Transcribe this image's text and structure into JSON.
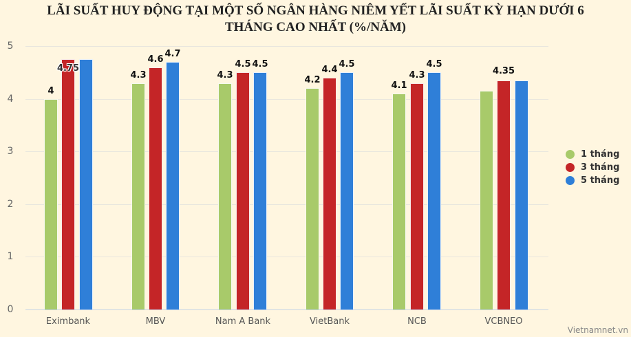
{
  "title_line1": "LÃI SUẤT HUY ĐỘNG TẠI MỘT SỐ NGÂN HÀNG NIÊM YẾT LÃI SUẤT KỲ HẠN DƯỚI 6",
  "title_line2": "THÁNG CAO NHẤT (%/NĂM)",
  "credit": "Vietnamnet.vn",
  "colors": {
    "1 tháng": "#a8ca6a",
    "3 tháng": "#c42527",
    "5 tháng": "#2f7fd8",
    "background": "#fff6e0"
  },
  "y_ticks": [
    "0",
    "1",
    "2",
    "3",
    "4",
    "5"
  ],
  "legend": [
    {
      "label": "1 tháng",
      "color": "#a8ca6a"
    },
    {
      "label": "3 tháng",
      "color": "#c42527"
    },
    {
      "label": "5 tháng",
      "color": "#2f7fd8"
    }
  ],
  "chart_data": {
    "type": "bar",
    "title": "LÃI SUẤT HUY ĐỘNG TẠI MỘT SỐ NGÂN HÀNG NIÊM YẾT LÃI SUẤT KỲ HẠN DƯỚI 6 THÁNG CAO NHẤT (%/NĂM)",
    "categories": [
      "Eximbank",
      "MBV",
      "Nam A Bank",
      "VietBank",
      "NCB",
      "VCBNEO"
    ],
    "series": [
      {
        "name": "1 tháng",
        "values": [
          4,
          4.3,
          4.3,
          4.2,
          4.1,
          4.15
        ]
      },
      {
        "name": "3 tháng",
        "values": [
          4.75,
          4.6,
          4.5,
          4.4,
          4.3,
          4.35
        ]
      },
      {
        "name": "5 tháng",
        "values": [
          4.75,
          4.7,
          4.5,
          4.5,
          4.5,
          4.35
        ]
      }
    ],
    "data_labels": [
      {
        "category": "Eximbank",
        "series": "1 tháng",
        "text": "4"
      },
      {
        "category": "Eximbank",
        "series": "3 tháng",
        "text": "4.75"
      },
      {
        "category": "MBV",
        "series": "1 tháng",
        "text": "4.3"
      },
      {
        "category": "MBV",
        "series": "3 tháng",
        "text": "4.6"
      },
      {
        "category": "MBV",
        "series": "5 tháng",
        "text": "4.7"
      },
      {
        "category": "Nam A Bank",
        "series": "1 tháng",
        "text": "4.3"
      },
      {
        "category": "Nam A Bank",
        "series": "3 tháng",
        "text": "4.5"
      },
      {
        "category": "Nam A Bank",
        "series": "5 tháng",
        "text": "4.5"
      },
      {
        "category": "VietBank",
        "series": "1 tháng",
        "text": "4.2"
      },
      {
        "category": "VietBank",
        "series": "3 tháng",
        "text": "4.4"
      },
      {
        "category": "VietBank",
        "series": "5 tháng",
        "text": "4.5"
      },
      {
        "category": "NCB",
        "series": "1 tháng",
        "text": "4.1"
      },
      {
        "category": "NCB",
        "series": "3 tháng",
        "text": "4.3"
      },
      {
        "category": "NCB",
        "series": "5 tháng",
        "text": "4.5"
      },
      {
        "category": "VCBNEO",
        "series": "3 tháng",
        "text": "4.35"
      }
    ],
    "xlabel": "",
    "ylabel": "",
    "ylim": [
      0,
      5
    ],
    "yticks": [
      0,
      1,
      2,
      3,
      4,
      5
    ],
    "grid": true,
    "legend_position": "right"
  }
}
